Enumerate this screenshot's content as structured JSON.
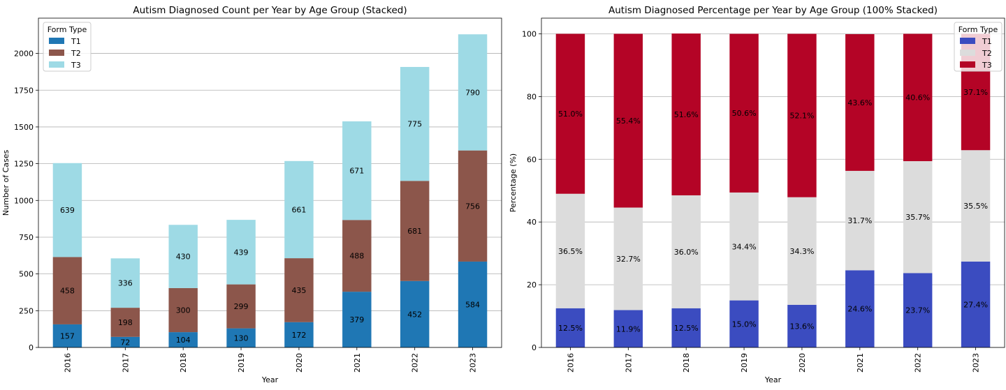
{
  "colors": {
    "count": {
      "T1": "#1f77b4",
      "T2": "#8c564b",
      "T3": "#9edae5"
    },
    "percent": {
      "T1": "#3b4cc0",
      "T2": "#dcdcdc",
      "T3": "#b40426"
    },
    "grid": "#b0b0b0",
    "legend_border": "#cccccc"
  },
  "chart_data": [
    {
      "type": "bar",
      "stacked": true,
      "title": "Autism Diagnosed Count per Year by Age Group (Stacked)",
      "xlabel": "Year",
      "ylabel": "Number of Cases",
      "ylim": [
        0,
        2240
      ],
      "yticks": [
        0,
        250,
        500,
        750,
        1000,
        1250,
        1500,
        1750,
        2000
      ],
      "grid": "y",
      "legend": {
        "title": "Form Type",
        "placement": "top-left"
      },
      "categories": [
        "2016",
        "2017",
        "2018",
        "2019",
        "2020",
        "2021",
        "2022",
        "2023"
      ],
      "series": [
        {
          "name": "T1",
          "values": [
            157,
            72,
            104,
            130,
            172,
            379,
            452,
            584
          ]
        },
        {
          "name": "T2",
          "values": [
            458,
            198,
            300,
            299,
            435,
            488,
            681,
            756
          ]
        },
        {
          "name": "T3",
          "values": [
            639,
            336,
            430,
            439,
            661,
            671,
            775,
            790
          ]
        }
      ]
    },
    {
      "type": "bar",
      "stacked": true,
      "normalized": true,
      "title": "Autism Diagnosed Percentage per Year by Age Group (100% Stacked)",
      "xlabel": "Year",
      "ylabel": "Percentage (%)",
      "ylim": [
        0,
        105
      ],
      "yticks": [
        0,
        20,
        40,
        60,
        80,
        100
      ],
      "grid": "y",
      "legend": {
        "title": "Form Type",
        "placement": "top-right"
      },
      "categories": [
        "2016",
        "2017",
        "2018",
        "2019",
        "2020",
        "2021",
        "2022",
        "2023"
      ],
      "series": [
        {
          "name": "T1",
          "values": [
            12.5,
            11.9,
            12.5,
            15.0,
            13.6,
            24.6,
            23.7,
            27.4
          ],
          "labels": [
            "12.5%",
            "11.9%",
            "12.5%",
            "15.0%",
            "13.6%",
            "24.6%",
            "23.7%",
            "27.4%"
          ]
        },
        {
          "name": "T2",
          "values": [
            36.5,
            32.7,
            36.0,
            34.4,
            34.3,
            31.7,
            35.7,
            35.5
          ],
          "labels": [
            "36.5%",
            "32.7%",
            "36.0%",
            "34.4%",
            "34.3%",
            "31.7%",
            "35.7%",
            "35.5%"
          ]
        },
        {
          "name": "T3",
          "values": [
            51.0,
            55.4,
            51.6,
            50.6,
            52.1,
            43.6,
            40.6,
            37.1
          ],
          "labels": [
            "51.0%",
            "55.4%",
            "51.6%",
            "50.6%",
            "52.1%",
            "43.6%",
            "40.6%",
            "37.1%"
          ]
        }
      ]
    }
  ]
}
